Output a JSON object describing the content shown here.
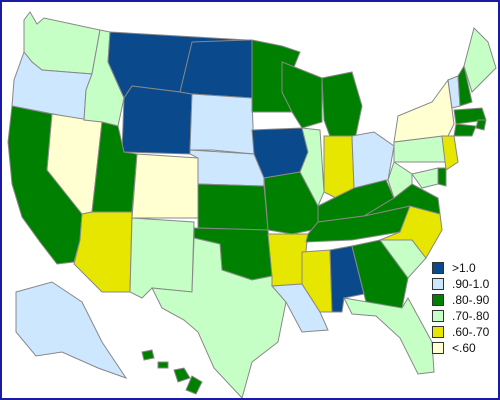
{
  "map": {
    "colors": {
      "gt_1_0": "#0a4a8c",
      "r_90_100": "#cce7ff",
      "r_80_90": "#008000",
      "r_70_80": "#c6ffc6",
      "r_60_70": "#e6e600",
      "lt_60": "#ffffd2"
    },
    "state_outline_color": "#888888",
    "legend": {
      "items": [
        {
          "label": ">1.0",
          "color": "#0a4a8c"
        },
        {
          "label": ".90-1.0",
          "color": "#cce7ff"
        },
        {
          "label": ".80-.90",
          "color": "#008000"
        },
        {
          "label": ".70-.80",
          "color": "#c6ffc6"
        },
        {
          "label": ".60-.70",
          "color": "#e6e600"
        },
        {
          "label": "<.60",
          "color": "#ffffd2"
        }
      ]
    }
  }
}
